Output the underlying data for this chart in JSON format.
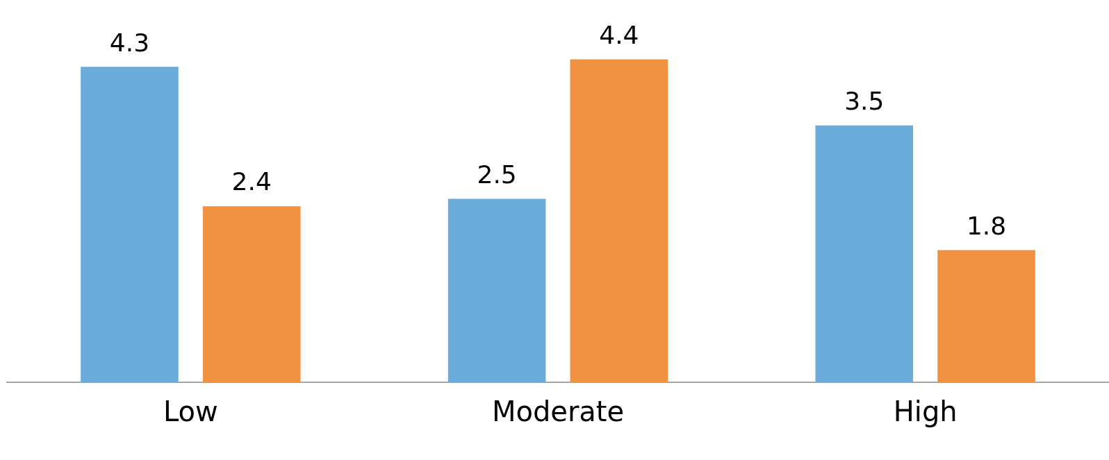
{
  "chart_data": {
    "type": "bar",
    "categories": [
      "Low",
      "Moderate",
      "High"
    ],
    "series": [
      {
        "color": "#6cacdc",
        "values": [
          4.3,
          2.5,
          3.5
        ]
      },
      {
        "color": "#f19242",
        "values": [
          2.4,
          4.4,
          1.8
        ]
      }
    ],
    "data_labels": true,
    "legend": false,
    "grid": false
  }
}
